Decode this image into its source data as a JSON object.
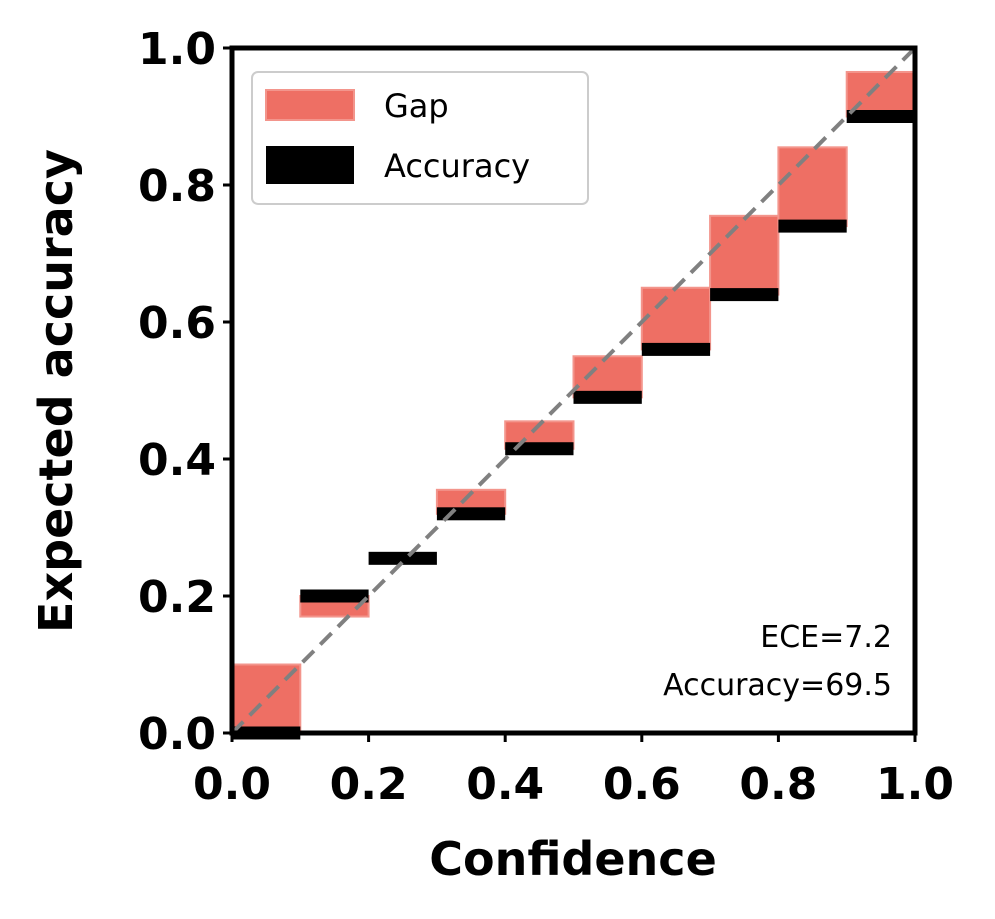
{
  "chart_data": {
    "type": "bar",
    "xlabel": "Confidence",
    "ylabel": "Expected accuracy",
    "xlim": [
      0.0,
      1.0
    ],
    "ylim": [
      0.0,
      1.0
    ],
    "x_ticks": [
      "0.0",
      "0.2",
      "0.4",
      "0.6",
      "0.8",
      "1.0"
    ],
    "y_ticks": [
      "0.0",
      "0.2",
      "0.4",
      "0.6",
      "0.8",
      "1.0"
    ],
    "grid": false,
    "legend_position": "top-left",
    "bins": [
      {
        "lo": 0.0,
        "hi": 0.1,
        "accuracy": 0.0,
        "expected": 0.1
      },
      {
        "lo": 0.1,
        "hi": 0.2,
        "accuracy": 0.2,
        "expected": 0.17
      },
      {
        "lo": 0.2,
        "hi": 0.3,
        "accuracy": 0.255,
        "expected": 0.255
      },
      {
        "lo": 0.3,
        "hi": 0.4,
        "accuracy": 0.32,
        "expected": 0.355
      },
      {
        "lo": 0.4,
        "hi": 0.5,
        "accuracy": 0.415,
        "expected": 0.455
      },
      {
        "lo": 0.5,
        "hi": 0.6,
        "accuracy": 0.49,
        "expected": 0.55
      },
      {
        "lo": 0.6,
        "hi": 0.7,
        "accuracy": 0.56,
        "expected": 0.65
      },
      {
        "lo": 0.7,
        "hi": 0.8,
        "accuracy": 0.64,
        "expected": 0.755
      },
      {
        "lo": 0.8,
        "hi": 0.9,
        "accuracy": 0.74,
        "expected": 0.855
      },
      {
        "lo": 0.9,
        "hi": 1.0,
        "accuracy": 0.9,
        "expected": 0.965
      }
    ],
    "series": [
      {
        "name": "Gap",
        "color": "#ee6f64"
      },
      {
        "name": "Accuracy",
        "color": "#000000"
      }
    ],
    "diagonal_color": "#808080",
    "annotations": {
      "ece": "ECE=7.2",
      "accuracy": "Accuracy=69.5"
    }
  }
}
